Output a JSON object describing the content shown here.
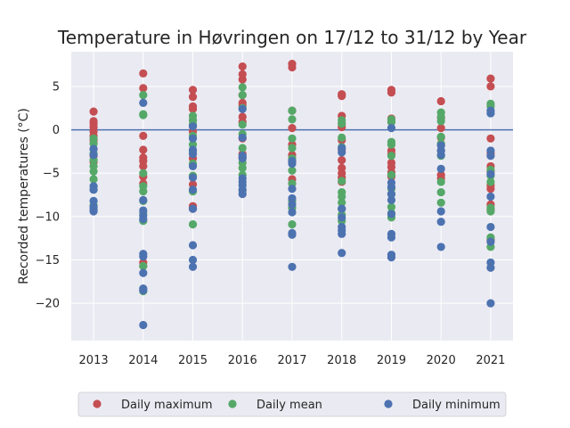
{
  "chart_data": {
    "type": "scatter",
    "title": "Temperature in Høvringen on 17/12 to 31/12 by Year",
    "xlabel": "",
    "ylabel": "Recorded temperatures (°C)",
    "x_ticks": [
      "2013",
      "2014",
      "2015",
      "2016",
      "2017",
      "2018",
      "2019",
      "2020",
      "2021"
    ],
    "y_ticks": [
      5,
      0,
      -5,
      -10,
      -15,
      -20
    ],
    "y_tick_labels": [
      "5",
      "0",
      "−5",
      "−10",
      "−15",
      "−20"
    ],
    "ylim": [
      -24.3,
      9.0
    ],
    "xlim": [
      2012.55,
      2021.45
    ],
    "grid": true,
    "reference_line": {
      "y": 0,
      "color": "#4c72b0"
    },
    "legend_position": "bottom-center, below plot",
    "series": [
      {
        "name": "Daily maximum",
        "color": "#c44e52",
        "points": [
          [
            2013,
            2.1
          ],
          [
            2013,
            1.0
          ],
          [
            2013,
            0.7
          ],
          [
            2013,
            0.3
          ],
          [
            2013,
            -0.2
          ],
          [
            2013,
            -0.7
          ],
          [
            2013,
            -1.2
          ],
          [
            2013,
            -2.2
          ],
          [
            2013,
            -3.0
          ],
          [
            2013,
            -3.7
          ],
          [
            2014,
            6.5
          ],
          [
            2014,
            4.8
          ],
          [
            2014,
            -0.7
          ],
          [
            2014,
            -2.3
          ],
          [
            2014,
            -3.2
          ],
          [
            2014,
            -3.6
          ],
          [
            2014,
            -4.2
          ],
          [
            2014,
            -5.4
          ],
          [
            2014,
            -6.2
          ],
          [
            2014,
            -15.3
          ],
          [
            2014,
            -15.7
          ],
          [
            2015,
            4.6
          ],
          [
            2015,
            3.8
          ],
          [
            2015,
            2.7
          ],
          [
            2015,
            2.4
          ],
          [
            2015,
            1.1
          ],
          [
            2015,
            0.4
          ],
          [
            2015,
            -0.2
          ],
          [
            2015,
            -3.3
          ],
          [
            2015,
            -6.3
          ],
          [
            2015,
            -8.8
          ],
          [
            2015,
            -9.1
          ],
          [
            2016,
            7.3
          ],
          [
            2016,
            6.4
          ],
          [
            2016,
            5.8
          ],
          [
            2016,
            4.0
          ],
          [
            2016,
            3.1
          ],
          [
            2016,
            2.8
          ],
          [
            2016,
            1.5
          ],
          [
            2016,
            0.9
          ],
          [
            2016,
            -1.0
          ],
          [
            2016,
            -2.8
          ],
          [
            2016,
            -3.2
          ],
          [
            2017,
            7.6
          ],
          [
            2017,
            7.2
          ],
          [
            2017,
            2.2
          ],
          [
            2017,
            0.2
          ],
          [
            2017,
            -1.7
          ],
          [
            2017,
            -2.9
          ],
          [
            2017,
            -3.7
          ],
          [
            2017,
            -5.7
          ],
          [
            2017,
            -6.2
          ],
          [
            2018,
            4.1
          ],
          [
            2018,
            3.9
          ],
          [
            2018,
            1.6
          ],
          [
            2018,
            0.7
          ],
          [
            2018,
            0.3
          ],
          [
            2018,
            -1.2
          ],
          [
            2018,
            -2.3
          ],
          [
            2018,
            -3.5
          ],
          [
            2018,
            -4.4
          ],
          [
            2018,
            -5.0
          ],
          [
            2018,
            -5.5
          ],
          [
            2018,
            -6.0
          ],
          [
            2019,
            4.6
          ],
          [
            2019,
            4.3
          ],
          [
            2019,
            1.3
          ],
          [
            2019,
            0.9
          ],
          [
            2019,
            -2.4
          ],
          [
            2019,
            -2.8
          ],
          [
            2019,
            -3.8
          ],
          [
            2019,
            -4.3
          ],
          [
            2019,
            -4.9
          ],
          [
            2019,
            -5.4
          ],
          [
            2020,
            3.3
          ],
          [
            2020,
            1.4
          ],
          [
            2020,
            0.2
          ],
          [
            2020,
            -0.9
          ],
          [
            2020,
            -2.4
          ],
          [
            2020,
            -5.2
          ],
          [
            2020,
            -5.6
          ],
          [
            2021,
            5.9
          ],
          [
            2021,
            5.0
          ],
          [
            2021,
            -1.0
          ],
          [
            2021,
            -2.7
          ],
          [
            2021,
            -4.2
          ],
          [
            2021,
            -4.8
          ],
          [
            2021,
            -6.4
          ],
          [
            2021,
            -6.8
          ],
          [
            2021,
            -8.6
          ],
          [
            2021,
            -9.2
          ],
          [
            2021,
            -12.7
          ]
        ]
      },
      {
        "name": "Daily mean",
        "color": "#55a868",
        "points": [
          [
            2013,
            -1.0
          ],
          [
            2013,
            -1.6
          ],
          [
            2013,
            -2.7
          ],
          [
            2013,
            -3.5
          ],
          [
            2013,
            -4.2
          ],
          [
            2013,
            -4.8
          ],
          [
            2013,
            -5.7
          ],
          [
            2013,
            -6.9
          ],
          [
            2013,
            -8.7
          ],
          [
            2014,
            4.0
          ],
          [
            2014,
            1.8
          ],
          [
            2014,
            1.7
          ],
          [
            2014,
            -5.0
          ],
          [
            2014,
            -6.5
          ],
          [
            2014,
            -7.1
          ],
          [
            2014,
            -8.2
          ],
          [
            2014,
            -9.6
          ],
          [
            2014,
            -10.5
          ],
          [
            2014,
            -15.7
          ],
          [
            2014,
            -18.6
          ],
          [
            2015,
            1.6
          ],
          [
            2015,
            1.1
          ],
          [
            2015,
            0.6
          ],
          [
            2015,
            -0.7
          ],
          [
            2015,
            -1.7
          ],
          [
            2015,
            -2.5
          ],
          [
            2015,
            -3.9
          ],
          [
            2015,
            -5.3
          ],
          [
            2015,
            -7.1
          ],
          [
            2015,
            -10.9
          ],
          [
            2016,
            4.9
          ],
          [
            2016,
            4.0
          ],
          [
            2016,
            2.5
          ],
          [
            2016,
            0.6
          ],
          [
            2016,
            -0.5
          ],
          [
            2016,
            -2.1
          ],
          [
            2016,
            -3.8
          ],
          [
            2016,
            -4.4
          ],
          [
            2016,
            -5.2
          ],
          [
            2016,
            -7.0
          ],
          [
            2017,
            2.2
          ],
          [
            2017,
            1.2
          ],
          [
            2017,
            -1.0
          ],
          [
            2017,
            -2.1
          ],
          [
            2017,
            -3.3
          ],
          [
            2017,
            -4.7
          ],
          [
            2017,
            -6.2
          ],
          [
            2017,
            -8.2
          ],
          [
            2017,
            -9.0
          ],
          [
            2017,
            -10.9
          ],
          [
            2018,
            1.1
          ],
          [
            2018,
            0.7
          ],
          [
            2018,
            -0.9
          ],
          [
            2018,
            -2.0
          ],
          [
            2018,
            -5.9
          ],
          [
            2018,
            -7.2
          ],
          [
            2018,
            -7.7
          ],
          [
            2018,
            -8.4
          ],
          [
            2018,
            -9.1
          ],
          [
            2018,
            -9.8
          ],
          [
            2018,
            -10.5
          ],
          [
            2019,
            1.2
          ],
          [
            2019,
            0.9
          ],
          [
            2019,
            -1.4
          ],
          [
            2019,
            -1.7
          ],
          [
            2019,
            -3.0
          ],
          [
            2019,
            -5.2
          ],
          [
            2019,
            -6.8
          ],
          [
            2019,
            -7.4
          ],
          [
            2019,
            -8.9
          ],
          [
            2019,
            -9.6
          ],
          [
            2019,
            -10.1
          ],
          [
            2020,
            2.0
          ],
          [
            2020,
            1.5
          ],
          [
            2020,
            1.0
          ],
          [
            2020,
            -0.8
          ],
          [
            2020,
            -1.6
          ],
          [
            2020,
            -2.4
          ],
          [
            2020,
            -3.0
          ],
          [
            2020,
            -6.0
          ],
          [
            2020,
            -7.2
          ],
          [
            2020,
            -8.4
          ],
          [
            2021,
            3.0
          ],
          [
            2021,
            2.7
          ],
          [
            2021,
            -4.6
          ],
          [
            2021,
            -5.3
          ],
          [
            2021,
            -6.0
          ],
          [
            2021,
            -9.0
          ],
          [
            2021,
            -9.4
          ],
          [
            2021,
            -12.4
          ],
          [
            2021,
            -13.5
          ]
        ]
      },
      {
        "name": "Daily minimum",
        "color": "#4c72b0",
        "points": [
          [
            2013,
            -2.2
          ],
          [
            2013,
            -2.9
          ],
          [
            2013,
            -6.5
          ],
          [
            2013,
            -6.9
          ],
          [
            2013,
            -8.2
          ],
          [
            2013,
            -8.9
          ],
          [
            2013,
            -9.2
          ],
          [
            2013,
            -9.4
          ],
          [
            2014,
            3.1
          ],
          [
            2014,
            -8.1
          ],
          [
            2014,
            -9.3
          ],
          [
            2014,
            -9.9
          ],
          [
            2014,
            -10.3
          ],
          [
            2014,
            -14.3
          ],
          [
            2014,
            -14.6
          ],
          [
            2014,
            -16.5
          ],
          [
            2014,
            -18.3
          ],
          [
            2014,
            -18.5
          ],
          [
            2014,
            -22.5
          ],
          [
            2015,
            0.4
          ],
          [
            2015,
            -1.0
          ],
          [
            2015,
            -2.3
          ],
          [
            2015,
            -2.8
          ],
          [
            2015,
            -4.2
          ],
          [
            2015,
            -5.5
          ],
          [
            2015,
            -6.9
          ],
          [
            2015,
            -9.1
          ],
          [
            2015,
            -13.3
          ],
          [
            2015,
            -15.0
          ],
          [
            2015,
            -15.8
          ],
          [
            2016,
            2.4
          ],
          [
            2016,
            -0.9
          ],
          [
            2016,
            -3.0
          ],
          [
            2016,
            -3.3
          ],
          [
            2016,
            -5.6
          ],
          [
            2016,
            -6.0
          ],
          [
            2016,
            -6.4
          ],
          [
            2016,
            -6.9
          ],
          [
            2016,
            -7.4
          ],
          [
            2017,
            -3.6
          ],
          [
            2017,
            -3.9
          ],
          [
            2017,
            -6.8
          ],
          [
            2017,
            -7.9
          ],
          [
            2017,
            -8.6
          ],
          [
            2017,
            -9.5
          ],
          [
            2017,
            -11.9
          ],
          [
            2017,
            -12.1
          ],
          [
            2017,
            -15.8
          ],
          [
            2018,
            -2.1
          ],
          [
            2018,
            -2.6
          ],
          [
            2018,
            -9.1
          ],
          [
            2018,
            -10.1
          ],
          [
            2018,
            -11.2
          ],
          [
            2018,
            -11.6
          ],
          [
            2018,
            -12.0
          ],
          [
            2018,
            -14.2
          ],
          [
            2019,
            0.2
          ],
          [
            2019,
            -6.1
          ],
          [
            2019,
            -6.6
          ],
          [
            2019,
            -7.4
          ],
          [
            2019,
            -8.1
          ],
          [
            2019,
            -9.7
          ],
          [
            2019,
            -12.0
          ],
          [
            2019,
            -12.4
          ],
          [
            2019,
            -14.4
          ],
          [
            2019,
            -14.7
          ],
          [
            2020,
            -1.8
          ],
          [
            2020,
            -2.4
          ],
          [
            2020,
            -2.9
          ],
          [
            2020,
            -4.5
          ],
          [
            2020,
            -9.4
          ],
          [
            2020,
            -10.6
          ],
          [
            2020,
            -13.5
          ],
          [
            2021,
            2.2
          ],
          [
            2021,
            1.9
          ],
          [
            2021,
            -2.4
          ],
          [
            2021,
            -3.0
          ],
          [
            2021,
            -5.1
          ],
          [
            2021,
            -7.7
          ],
          [
            2021,
            -11.2
          ],
          [
            2021,
            -12.9
          ],
          [
            2021,
            -15.3
          ],
          [
            2021,
            -15.9
          ],
          [
            2021,
            -20.0
          ]
        ]
      }
    ]
  }
}
